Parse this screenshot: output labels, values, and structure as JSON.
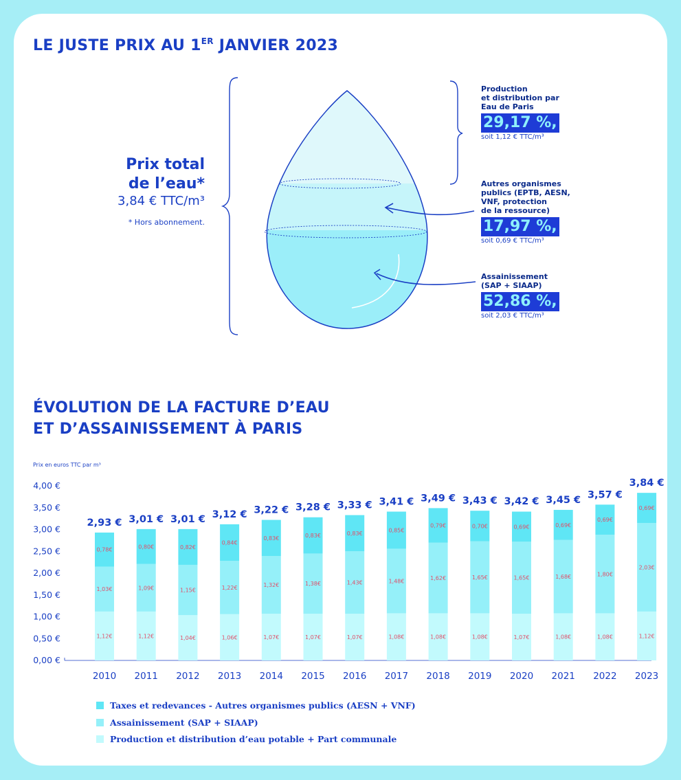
{
  "heading_top": {
    "main": "LE JUSTE PRIX AU 1",
    "sup": "ER",
    "tail": " JANVIER 2023"
  },
  "total": {
    "line1": "Prix total",
    "line2": "de l’eau*",
    "price": "3,84 € TTC/m³",
    "note": "* Hors abonnement."
  },
  "annotations": [
    {
      "label_lines": [
        "Production",
        "et distribution par",
        "Eau de Paris"
      ],
      "percent": "29,17 %,",
      "detail": "soit 1,12 € TTC/m³"
    },
    {
      "label_lines": [
        "Autres organismes",
        "publics (EPTB, AESN,",
        "VNF, protection",
        "de la ressource)"
      ],
      "percent": "17,97 %,",
      "detail": "soit 0,69 € TTC/m³"
    },
    {
      "label_lines": [
        "Assainissement",
        "(SAP + SIAAP)"
      ],
      "percent": "52,86 %,",
      "detail": "soit 2,03 € TTC/m³"
    }
  ],
  "heading_chart": {
    "line1": "ÉVOLUTION DE LA FACTURE D’EAU",
    "line2": "ET D’ASSAINISSEMENT À PARIS"
  },
  "chart_data": {
    "type": "bar",
    "stacked": true,
    "ylabel": "Prix en euros TTC par m³",
    "ylim": [
      0,
      4
    ],
    "ytick_labels": [
      "0,00 €",
      "0,50 €",
      "1,00 €",
      "1,50 €",
      "2,00 €",
      "2,50 €",
      "3,00 €",
      "3,50 €",
      "4,00 €"
    ],
    "yticks": [
      0,
      0.5,
      1,
      1.5,
      2,
      2.5,
      3,
      3.5,
      4
    ],
    "categories": [
      "2010",
      "2011",
      "2012",
      "2013",
      "2014",
      "2015",
      "2016",
      "2017",
      "2018",
      "2019",
      "2020",
      "2021",
      "2022",
      "2023"
    ],
    "totals": [
      2.93,
      3.01,
      3.01,
      3.12,
      3.22,
      3.28,
      3.33,
      3.41,
      3.49,
      3.43,
      3.42,
      3.45,
      3.57,
      3.84
    ],
    "total_labels": [
      "2,93 €",
      "3,01 €",
      "3,01 €",
      "3,12 €",
      "3,22 €",
      "3,28 €",
      "3,33 €",
      "3,41 €",
      "3,49 €",
      "3,43 €",
      "3,42 €",
      "3,45 €",
      "3,57 €",
      "3,84 €"
    ],
    "series": [
      {
        "name": "Production et distribution d’eau potable + Part communale",
        "color": "#c2fafd",
        "values": [
          1.12,
          1.12,
          1.04,
          1.06,
          1.07,
          1.07,
          1.07,
          1.08,
          1.08,
          1.08,
          1.07,
          1.08,
          1.08,
          1.12
        ],
        "labels": [
          "1,12€",
          "1,12€",
          "1,04€",
          "1,06€",
          "1,07€",
          "1,07€",
          "1,07€",
          "1,08€",
          "1,08€",
          "1,08€",
          "1,07€",
          "1,08€",
          "1,08€",
          "1,12€"
        ]
      },
      {
        "name": "Assainissement (SAP + SIAAP)",
        "color": "#95f0f9",
        "values": [
          1.03,
          1.09,
          1.15,
          1.22,
          1.32,
          1.38,
          1.43,
          1.48,
          1.62,
          1.65,
          1.65,
          1.68,
          1.8,
          2.03
        ],
        "labels": [
          "1,03€",
          "1,09€",
          "1,15€",
          "1,22€",
          "1,32€",
          "1,38€",
          "1,43€",
          "1,48€",
          "1,62€",
          "1,65€",
          "1,65€",
          "1,68€",
          "1,80€",
          "2,03€"
        ]
      },
      {
        "name": "Taxes et redevances - Autres organismes publics (AESN + VNF)",
        "color": "#5fe6f5",
        "values": [
          0.78,
          0.8,
          0.82,
          0.84,
          0.83,
          0.83,
          0.83,
          0.85,
          0.79,
          0.7,
          0.69,
          0.69,
          0.69,
          0.69
        ],
        "labels": [
          "0,78€",
          "0,80€",
          "0,82€",
          "0,84€",
          "0,83€",
          "0,83€",
          "0,83€",
          "0,85€",
          "0,79€",
          "0,70€",
          "0,69€",
          "0,69€",
          "0,69€",
          "0,69€"
        ]
      }
    ],
    "legend_order": [
      2,
      1,
      0
    ],
    "legend_position": "bottom-left",
    "grid": false,
    "value_label_color": "#e0506a"
  }
}
